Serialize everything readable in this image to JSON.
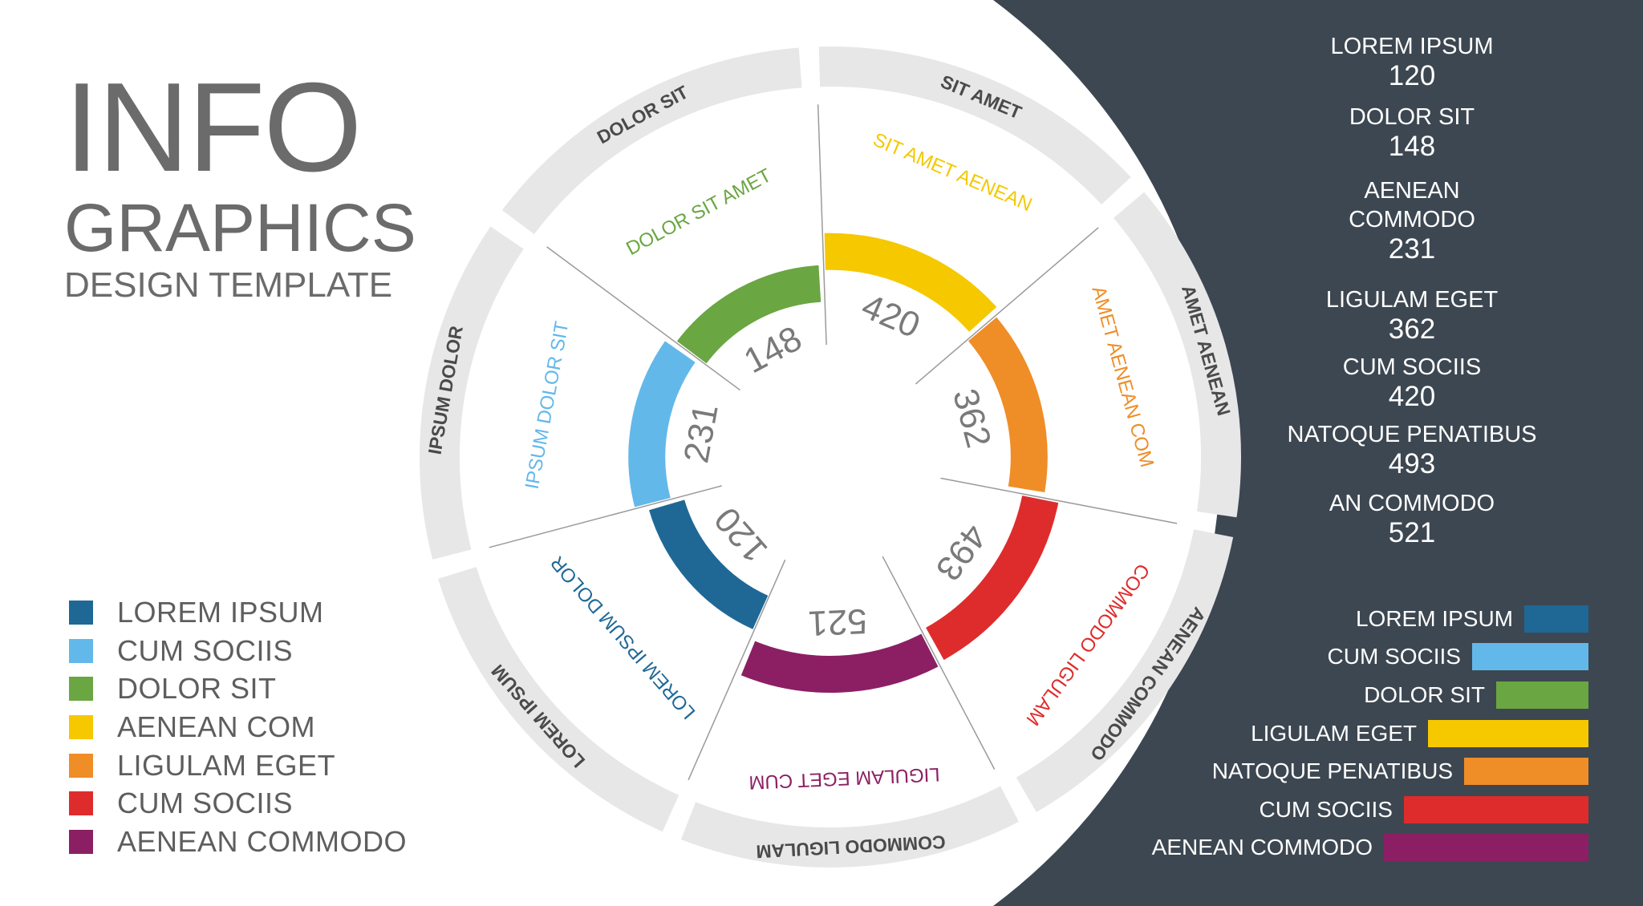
{
  "title": {
    "line1": "INFO",
    "line2": "GRAPHICS",
    "line3": "DESIGN TEMPLATE"
  },
  "colors": {
    "panel": "#3d4751",
    "ring_track": "#e7e7e8",
    "label_dark": "#4a4a4a",
    "value_text": "#7a7a7a",
    "navy": "#1f6896",
    "sky": "#63b8ea",
    "green": "#6aa642",
    "yellow": "#f5c800",
    "orange": "#ef8d27",
    "red": "#de2c2c",
    "purple": "#8c1f63"
  },
  "left_legend": [
    {
      "label": "LOREM IPSUM",
      "color": "#1f6896"
    },
    {
      "label": "CUM SOCIIS",
      "color": "#63b8ea"
    },
    {
      "label": "DOLOR SIT",
      "color": "#6aa642"
    },
    {
      "label": "AENEAN COM",
      "color": "#f5c800"
    },
    {
      "label": "LIGULAM EGET",
      "color": "#ef8d27"
    },
    {
      "label": "CUM SOCIIS",
      "color": "#de2c2c"
    },
    {
      "label": "AENEAN COMMODO",
      "color": "#8c1f63"
    }
  ],
  "right_stats": [
    {
      "label": "LOREM IPSUM",
      "value": "120"
    },
    {
      "label": "DOLOR SIT",
      "value": "148"
    },
    {
      "label": "AENEAN\nCOMMODO",
      "value": "231"
    },
    {
      "label": "LIGULAM EGET",
      "value": "362"
    },
    {
      "label": "CUM SOCIIS",
      "value": "420"
    },
    {
      "label": "NATOQUE PENATIBUS",
      "value": "493"
    },
    {
      "label": "AN COMMODO",
      "value": "521"
    }
  ],
  "chart_data": [
    {
      "type": "radial-bar",
      "outer_ring_labels": [
        "SIT AMET",
        "AMET AENEAN",
        "AENEAN COMMODO",
        "COMMODO LIGULAM",
        "LOREM IPSUM",
        "IPSUM DOLOR",
        "DOLOR SIT"
      ],
      "series": [
        {
          "name": "SIT AMET AENEAN",
          "value": 420,
          "color": "#f5c800"
        },
        {
          "name": "AMET AENEAN COM",
          "value": 362,
          "color": "#ef8d27"
        },
        {
          "name": "COMMODO LIGULAM",
          "value": 493,
          "color": "#de2c2c"
        },
        {
          "name": "LIGULAM EGET CUM",
          "value": 521,
          "color": "#8c1f63"
        },
        {
          "name": "LOREM IPSUM DOLOR",
          "value": 120,
          "color": "#1f6896"
        },
        {
          "name": "IPSUM DOLOR SIT",
          "value": 231,
          "color": "#63b8ea"
        },
        {
          "name": "DOLOR SIT AMET",
          "value": 148,
          "color": "#6aa642"
        }
      ]
    },
    {
      "type": "bar",
      "orientation": "horizontal",
      "categories": [
        "LOREM IPSUM",
        "CUM SOCIIS",
        "DOLOR SIT",
        "LIGULAM EGET",
        "NATOQUE PENATIBUS",
        "CUM SOCIIS",
        "AENEAN COMMODO"
      ],
      "values": [
        80,
        145,
        115,
        200,
        155,
        230,
        255
      ],
      "colors": [
        "#1f6896",
        "#63b8ea",
        "#6aa642",
        "#f5c800",
        "#ef8d27",
        "#de2c2c",
        "#8c1f63"
      ]
    }
  ]
}
